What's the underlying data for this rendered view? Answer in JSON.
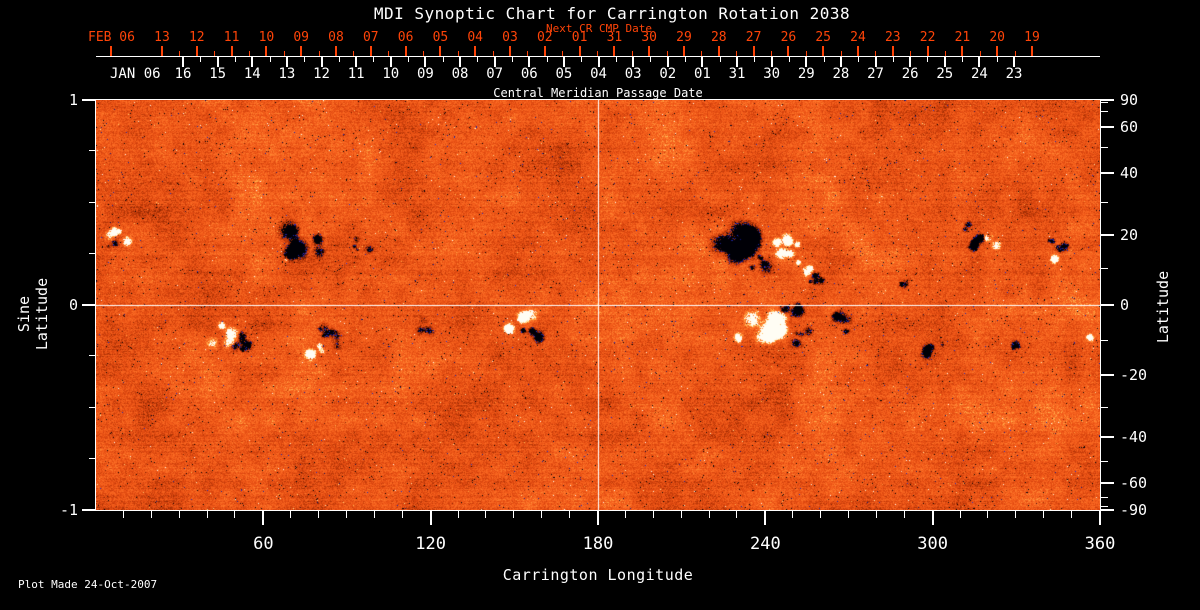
{
  "chart_data": {
    "type": "heatmap",
    "title": "MDI Synoptic Chart for Carrington Rotation 2038",
    "next_cr_axis": {
      "title": "Next CR CMP Date",
      "month": "FEB 06",
      "days": [
        "13",
        "12",
        "11",
        "10",
        "09",
        "08",
        "07",
        "06",
        "05",
        "04",
        "03",
        "02",
        "01",
        "31",
        "30",
        "29",
        "28",
        "27",
        "26",
        "25",
        "24",
        "23",
        "22",
        "21",
        "20",
        "19"
      ],
      "color": "#ff4408"
    },
    "cmp_axis": {
      "title": "Central Meridian Passage Date",
      "month": "JAN 06",
      "days": [
        "16",
        "15",
        "14",
        "13",
        "12",
        "11",
        "10",
        "09",
        "08",
        "07",
        "06",
        "05",
        "04",
        "03",
        "02",
        "01",
        "31",
        "30",
        "29",
        "28",
        "27",
        "26",
        "25",
        "24",
        "23"
      ]
    },
    "x_axis": {
      "title": "Carrington Longitude",
      "range": [
        0,
        360
      ],
      "major_ticks": [
        60,
        120,
        180,
        240,
        300,
        360
      ],
      "minor_step_deg": 10
    },
    "y_left_axis": {
      "title": "Sine Latitude",
      "range": [
        -1,
        1
      ],
      "ticks": [
        1,
        0,
        -1
      ],
      "minor_ticks": [
        0.75,
        0.5,
        0.25,
        -0.25,
        -0.5,
        -0.75
      ]
    },
    "y_right_axis": {
      "title": "Latitude",
      "ticks": [
        90,
        60,
        40,
        20,
        0,
        -20,
        -40,
        -60,
        -90
      ],
      "minor_step_deg": 10
    },
    "grid_lines": {
      "vertical_at_lon": 180,
      "horizontal_at_sine": 0
    },
    "palette": {
      "background_mid": "#f05818",
      "negative_core": "#000006",
      "negative_blue": "#2433d6",
      "positive_core": "#fffdf4",
      "positive_fringe": "#ffb54e"
    },
    "active_regions": [
      {
        "lon": 8,
        "sine_lat": 0.34,
        "polarity": "positive",
        "radius": 6,
        "strength": 0.9,
        "pieces": 6
      },
      {
        "lon": 5,
        "sine_lat": 0.29,
        "polarity": "negative",
        "radius": 4,
        "strength": 0.7,
        "pieces": 3
      },
      {
        "lon": 74,
        "sine_lat": 0.3,
        "polarity": "negative",
        "radius": 11,
        "strength": 1.0,
        "pieces": 10
      },
      {
        "lon": 70,
        "sine_lat": 0.23,
        "polarity": "positive",
        "radius": 4,
        "strength": 0.5,
        "pieces": 3
      },
      {
        "lon": 95,
        "sine_lat": 0.3,
        "polarity": "negative",
        "radius": 5,
        "strength": 0.8,
        "pieces": 4
      },
      {
        "lon": 45,
        "sine_lat": -0.14,
        "polarity": "positive",
        "radius": 8,
        "strength": 0.8,
        "pieces": 7
      },
      {
        "lon": 52,
        "sine_lat": -0.18,
        "polarity": "negative",
        "radius": 7,
        "strength": 0.8,
        "pieces": 6
      },
      {
        "lon": 82,
        "sine_lat": -0.15,
        "polarity": "negative",
        "radius": 8,
        "strength": 0.9,
        "pieces": 7
      },
      {
        "lon": 78,
        "sine_lat": -0.22,
        "polarity": "positive",
        "radius": 6,
        "strength": 0.7,
        "pieces": 5
      },
      {
        "lon": 118,
        "sine_lat": -0.1,
        "polarity": "negative",
        "radius": 5,
        "strength": 0.6,
        "pieces": 4
      },
      {
        "lon": 151,
        "sine_lat": -0.09,
        "polarity": "positive",
        "radius": 8,
        "strength": 1.0,
        "pieces": 6
      },
      {
        "lon": 156,
        "sine_lat": -0.16,
        "polarity": "negative",
        "radius": 7,
        "strength": 1.0,
        "pieces": 5
      },
      {
        "lon": 230,
        "sine_lat": 0.3,
        "polarity": "negative",
        "radius": 12,
        "strength": 1.1,
        "pieces": 12
      },
      {
        "lon": 238,
        "sine_lat": 0.22,
        "polarity": "negative",
        "radius": 8,
        "strength": 0.9,
        "pieces": 6
      },
      {
        "lon": 247,
        "sine_lat": 0.28,
        "polarity": "positive",
        "radius": 9,
        "strength": 1.0,
        "pieces": 7
      },
      {
        "lon": 252,
        "sine_lat": 0.2,
        "polarity": "positive",
        "radius": 7,
        "strength": 1.3,
        "pieces": 3
      },
      {
        "lon": 258,
        "sine_lat": 0.14,
        "polarity": "negative",
        "radius": 5,
        "strength": 0.8,
        "pieces": 4
      },
      {
        "lon": 240,
        "sine_lat": -0.1,
        "polarity": "positive",
        "radius": 11,
        "strength": 1.0,
        "pieces": 10
      },
      {
        "lon": 248,
        "sine_lat": -0.04,
        "polarity": "negative",
        "radius": 7,
        "strength": 0.9,
        "pieces": 6
      },
      {
        "lon": 252,
        "sine_lat": -0.16,
        "polarity": "negative",
        "radius": 6,
        "strength": 0.8,
        "pieces": 5
      },
      {
        "lon": 233,
        "sine_lat": -0.18,
        "polarity": "positive",
        "radius": 6,
        "strength": 0.7,
        "pieces": 4
      },
      {
        "lon": 268,
        "sine_lat": -0.09,
        "polarity": "negative",
        "radius": 7,
        "strength": 0.8,
        "pieces": 7
      },
      {
        "lon": 288,
        "sine_lat": 0.12,
        "polarity": "negative",
        "radius": 5,
        "strength": 0.6,
        "pieces": 5
      },
      {
        "lon": 318,
        "sine_lat": 0.33,
        "polarity": "negative",
        "radius": 7,
        "strength": 1.1,
        "pieces": 6
      },
      {
        "lon": 322,
        "sine_lat": 0.31,
        "polarity": "positive",
        "radius": 6,
        "strength": 1.2,
        "pieces": 4
      },
      {
        "lon": 313,
        "sine_lat": 0.38,
        "polarity": "negative",
        "radius": 4,
        "strength": 0.6,
        "pieces": 3
      },
      {
        "lon": 345,
        "sine_lat": 0.3,
        "polarity": "negative",
        "radius": 6,
        "strength": 0.9,
        "pieces": 5
      },
      {
        "lon": 342,
        "sine_lat": 0.22,
        "polarity": "positive",
        "radius": 4,
        "strength": 0.6,
        "pieces": 3
      },
      {
        "lon": 300,
        "sine_lat": -0.22,
        "polarity": "negative",
        "radius": 6,
        "strength": 0.7,
        "pieces": 6
      },
      {
        "lon": 330,
        "sine_lat": -0.18,
        "polarity": "negative",
        "radius": 5,
        "strength": 0.6,
        "pieces": 5
      },
      {
        "lon": 356,
        "sine_lat": -0.14,
        "polarity": "positive",
        "radius": 4,
        "strength": 0.7,
        "pieces": 3
      }
    ]
  },
  "footer": {
    "plot_made": "Plot Made 24-Oct-2007"
  }
}
